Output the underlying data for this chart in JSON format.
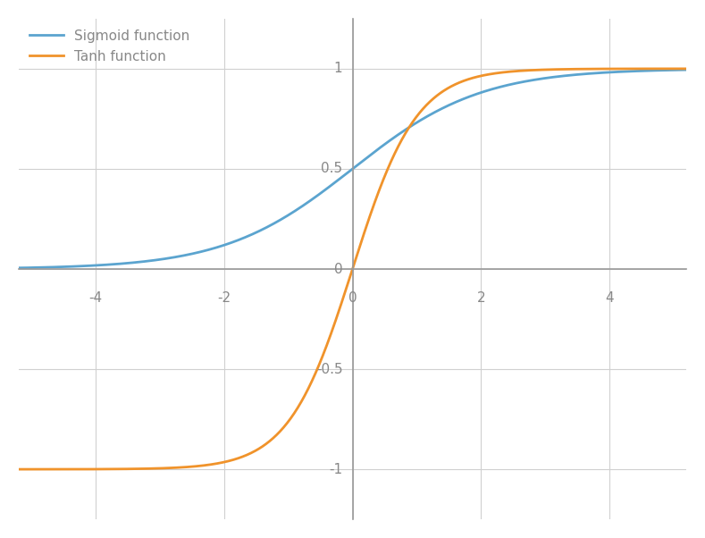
{
  "xlim": [
    -5.2,
    5.2
  ],
  "ylim": [
    -1.25,
    1.25
  ],
  "xticks": [
    -4,
    -2,
    0,
    2,
    4
  ],
  "yticks": [
    -1,
    -0.5,
    0,
    0.5,
    1
  ],
  "sigmoid_color": "#5BA4CF",
  "tanh_color": "#F0932B",
  "sigmoid_label": "Sigmoid function",
  "tanh_label": "Tanh function",
  "line_width": 2.0,
  "grid_color": "#D0D0D0",
  "axis_color": "#999999",
  "background_color": "#FFFFFF",
  "tick_label_color": "#888888",
  "legend_fontsize": 11,
  "tick_fontsize": 11
}
